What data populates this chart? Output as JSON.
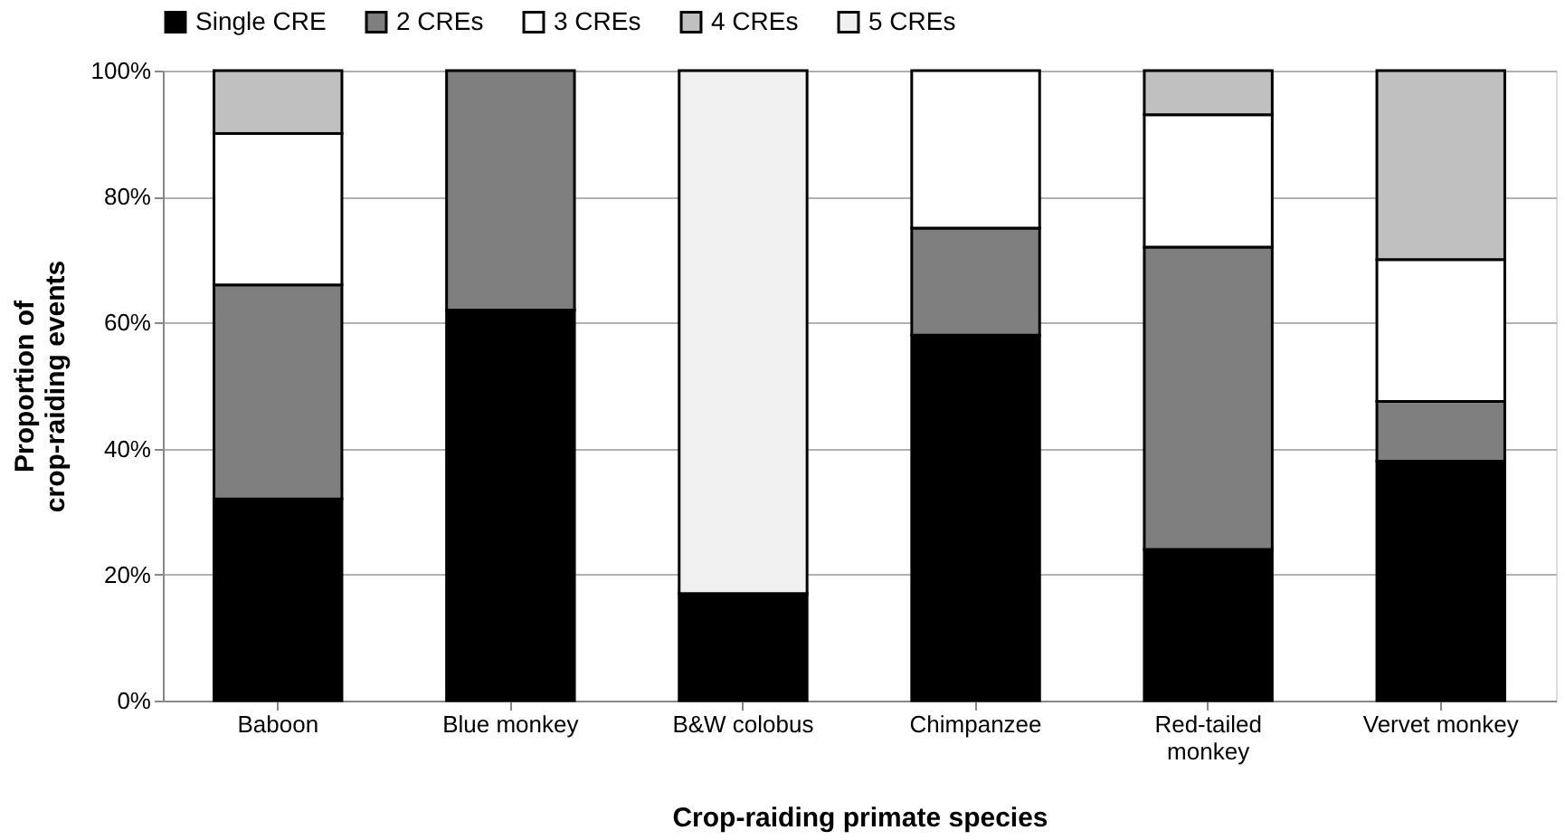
{
  "chart_data": {
    "type": "bar",
    "stacked": true,
    "xlabel": "Crop-raiding primate species",
    "ylabel": "Proportion of crop-raiding events",
    "categories": [
      "Baboon",
      "Blue monkey",
      "B&W colobus",
      "Chimpanzee",
      "Red-tailed monkey",
      "Vervet monkey"
    ],
    "series": [
      {
        "name": "Single CRE",
        "color": "#000000",
        "values": [
          32,
          62,
          17,
          58,
          24,
          38
        ]
      },
      {
        "name": "2 CREs",
        "color": "#7f7f7f",
        "values": [
          34,
          38,
          null,
          17,
          48,
          9.5
        ]
      },
      {
        "name": "3 CREs",
        "color": "#ffffff",
        "values": [
          24,
          null,
          null,
          25,
          21,
          22.5
        ]
      },
      {
        "name": "4 CREs",
        "color": "#c0c0c0",
        "values": [
          10,
          null,
          null,
          null,
          7,
          30
        ]
      },
      {
        "name": "5 CREs",
        "color": "#f0f0f0",
        "values": [
          null,
          null,
          83,
          null,
          null,
          null
        ]
      }
    ],
    "ylim": [
      0,
      100
    ],
    "yticks": [
      {
        "value": 0,
        "label": "0%"
      },
      {
        "value": 20,
        "label": "20%"
      },
      {
        "value": 40,
        "label": "40%"
      },
      {
        "value": 60,
        "label": "60%"
      },
      {
        "value": 80,
        "label": "80%"
      },
      {
        "value": 100,
        "label": "100%"
      }
    ],
    "grid": "y",
    "legend": "top"
  }
}
